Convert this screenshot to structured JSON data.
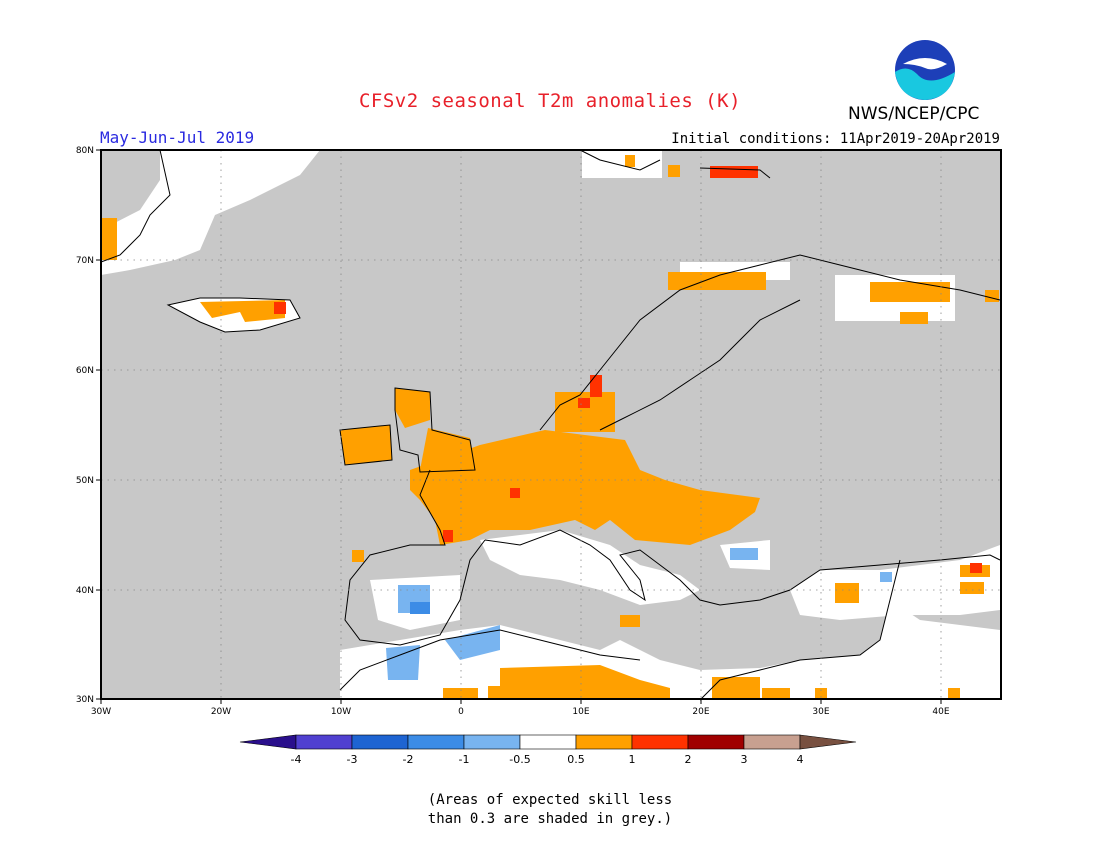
{
  "title": "CFSv2 seasonal T2m anomalies (K)",
  "organization": "NWS/NCEP/CPC",
  "logo_text": "NOAA",
  "period": "May-Jun-Jul 2019",
  "initial_conditions": "Initial conditions: 11Apr2019-20Apr2019",
  "map": {
    "lon_range": [
      -30,
      45
    ],
    "lat_range": [
      30,
      80
    ],
    "lon_ticks": [
      "30W",
      "20W",
      "10W",
      "0",
      "10E",
      "20E",
      "30E",
      "40E"
    ],
    "lat_ticks": [
      "80N",
      "70N",
      "60N",
      "50N",
      "40N",
      "30N"
    ],
    "grid_color": "#888888",
    "background_color": "#c8c8c8"
  },
  "colorbar": {
    "labels": [
      "-4",
      "-3",
      "-2",
      "-1",
      "-0.5",
      "0.5",
      "1",
      "2",
      "3",
      "4"
    ],
    "colors": [
      "#2a0f8c",
      "#5040d0",
      "#1e64d2",
      "#3c8ce6",
      "#78b4f0",
      "#ffffff",
      "#ffa000",
      "#ff3200",
      "#a00000",
      "#c8a090",
      "#785040"
    ]
  },
  "colors": {
    "grey": "#c8c8c8",
    "white": "#ffffff",
    "orange": "#ffa000",
    "red": "#ff3200",
    "light_blue": "#78b4f0",
    "blue": "#3c8ce6"
  },
  "note_line1": "(Areas of expected skill less",
  "note_line2": "than 0.3 are shaded in grey.)"
}
